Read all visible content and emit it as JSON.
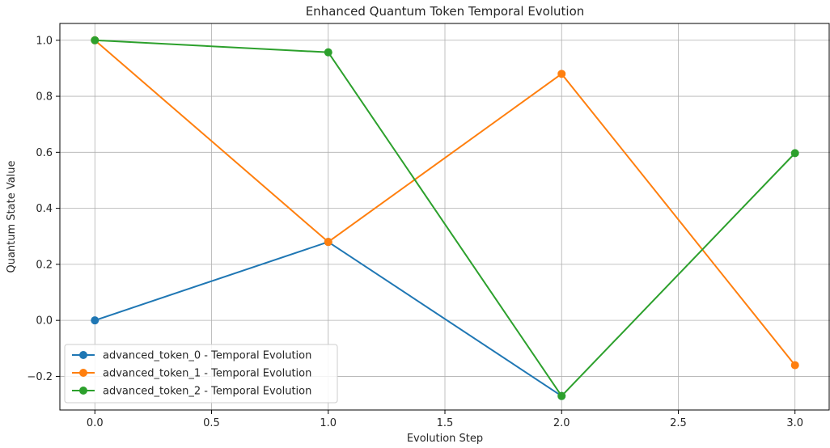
{
  "chart_data": {
    "type": "line",
    "title": "Enhanced Quantum Token Temporal Evolution",
    "xlabel": "Evolution Step",
    "ylabel": "Quantum State Value",
    "xlim": [
      -0.15,
      3.15
    ],
    "ylim": [
      -0.32,
      1.06
    ],
    "xticks": [
      0.0,
      0.5,
      1.0,
      1.5,
      2.0,
      2.5,
      3.0
    ],
    "xtick_labels": [
      "0.0",
      "0.5",
      "1.0",
      "1.5",
      "2.0",
      "2.5",
      "3.0"
    ],
    "yticks": [
      -0.2,
      0.0,
      0.2,
      0.4,
      0.6,
      0.8,
      1.0
    ],
    "ytick_labels": [
      "−0.2",
      "0.0",
      "0.2",
      "0.4",
      "0.6",
      "0.8",
      "1.0"
    ],
    "grid": true,
    "legend_position": "lower-left",
    "x": [
      0,
      1,
      2,
      3
    ],
    "series": [
      {
        "name": "advanced_token_0 - Temporal Evolution",
        "color": "#1f77b4",
        "x": [
          0,
          1,
          2
        ],
        "values": [
          0.0,
          0.28,
          -0.27
        ]
      },
      {
        "name": "advanced_token_1 - Temporal Evolution",
        "color": "#ff7f0e",
        "x": [
          0,
          1,
          2,
          3
        ],
        "values": [
          1.0,
          0.28,
          0.88,
          -0.16
        ]
      },
      {
        "name": "advanced_token_2 - Temporal Evolution",
        "color": "#2ca02c",
        "x": [
          0,
          1,
          2,
          3
        ],
        "values": [
          1.0,
          0.957,
          -0.27,
          0.597
        ]
      }
    ]
  }
}
